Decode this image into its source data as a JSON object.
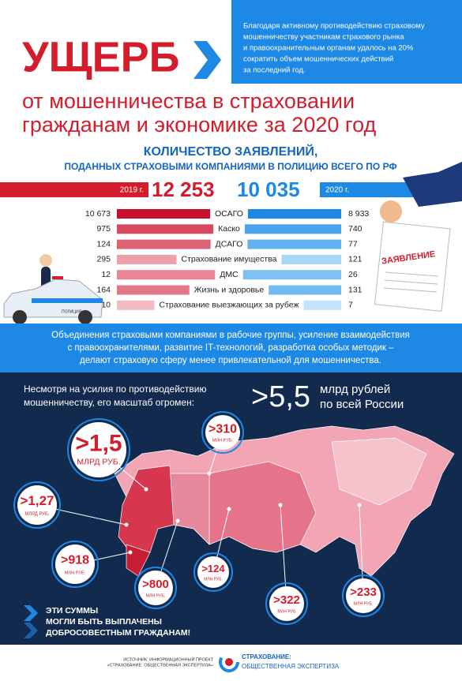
{
  "header": {
    "title": "УЩЕРБ",
    "subtitle": [
      "от мошенничества в страховании",
      "гражданам и экономике за 2020 год"
    ],
    "note": [
      "Благодаря активному противодействию страховому",
      "мошенничеству участникам страхового рынка",
      "и правоохранительным органам удалось на 20%",
      "сократить объем мошеннических действий",
      "за последний год."
    ]
  },
  "claims": {
    "title": [
      "КОЛИЧЕСТВО ЗАЯВЛЕНИЙ,",
      "ПОДАННЫХ СТРАХОВЫМИ КОМПАНИЯМИ В ПОЛИЦИЮ ВСЕГО ПО РФ"
    ],
    "years": [
      "2019 г.",
      "2020 г."
    ],
    "totals": [
      "12 253",
      "10 035"
    ],
    "rows": [
      [
        "10 673",
        "ОСАГО",
        "8 933"
      ],
      [
        "975",
        "Каско",
        "740"
      ],
      [
        "124",
        "ДСАГО",
        "77"
      ],
      [
        "295",
        "Страхование имущества",
        "121"
      ],
      [
        "12",
        "ДМС",
        "26"
      ],
      [
        "164",
        "Жизнь и здоровье",
        "131"
      ],
      [
        "10",
        "Страхование выезжающих за рубеж",
        "7"
      ]
    ]
  },
  "illustration": {
    "car_label": "ПОЛИЦИЯ",
    "form_label": "ЗАЯВЛЕНИЕ"
  },
  "measures": [
    "Объединения страховыми компаниями в рабочие группы, усиление взаимодействия",
    "с правоохранителями, развитие IT-технологий, разработка особых методик –",
    "делают страховую сферу менее привлекательной для мошенничества."
  ],
  "scale": {
    "text": [
      "Несмотря на усилия по противодействию",
      "мошенничеству, его масштаб огромен:"
    ],
    "total": ">5,5",
    "total_unit": [
      "млрд рублей",
      "по всей России"
    ]
  },
  "regions": [
    {
      "amount": ">1,5",
      "unit": "МЛРД РУБ."
    },
    {
      "amount": ">310",
      "unit": "МЛН РУБ."
    },
    {
      "amount": ">1,27",
      "unit": "МЛРД РУБ."
    },
    {
      "amount": ">918",
      "unit": "МЛН РУБ."
    },
    {
      "amount": ">800",
      "unit": "МЛН РУБ."
    },
    {
      "amount": ">124",
      "unit": "МЛН РУБ."
    },
    {
      "amount": ">322",
      "unit": "МЛН РУБ"
    },
    {
      "amount": ">233",
      "unit": "МЛН РУБ."
    }
  ],
  "callout": [
    "ЭТИ СУММЫ",
    "МОГЛИ БЫТЬ ВЫПЛАЧЕНЫ",
    "ДОБРОСОВЕСТНЫМ ГРАЖДАНАМ!"
  ],
  "footer": {
    "source": [
      "ИСТОЧНИК: ИНФОРМАЦИОННЫЙ ПРОЕКТ",
      "«СТРАХОВАНИЕ: ОБЩЕСТВЕННАЯ ЭКСПЕРТИЗА»"
    ],
    "logo": [
      "СТРАХОВАНИЕ:",
      "ОБЩЕСТВЕННАЯ ЭКСПЕРТИЗА"
    ]
  }
}
